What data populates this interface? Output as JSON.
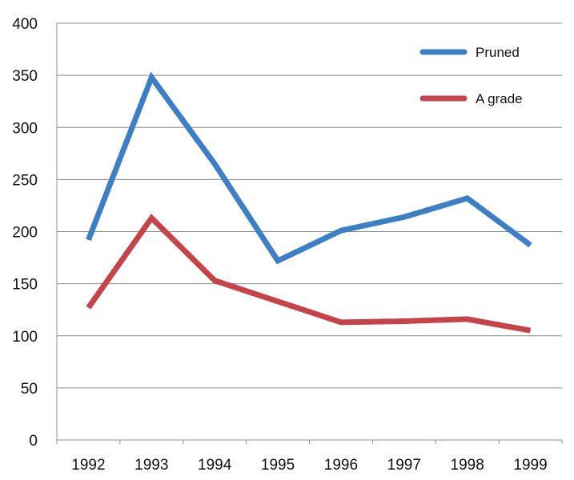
{
  "chart_data": {
    "type": "line",
    "title": "",
    "xlabel": "",
    "ylabel": "",
    "categories": [
      "1992",
      "1993",
      "1994",
      "1995",
      "1996",
      "1997",
      "1998",
      "1999"
    ],
    "series": [
      {
        "name": "Pruned",
        "color": "#3d7fc6",
        "values": [
          192,
          348,
          265,
          172,
          201,
          214,
          232,
          187
        ]
      },
      {
        "name": "A grade",
        "color": "#c6434a",
        "values": [
          127,
          213,
          153,
          133,
          113,
          114,
          116,
          105
        ]
      }
    ],
    "ylim": [
      0,
      400
    ],
    "yticks": [
      "0",
      "50",
      "100",
      "150",
      "200",
      "250",
      "300",
      "350",
      "400"
    ],
    "grid": true,
    "legend_position": "top-right"
  }
}
